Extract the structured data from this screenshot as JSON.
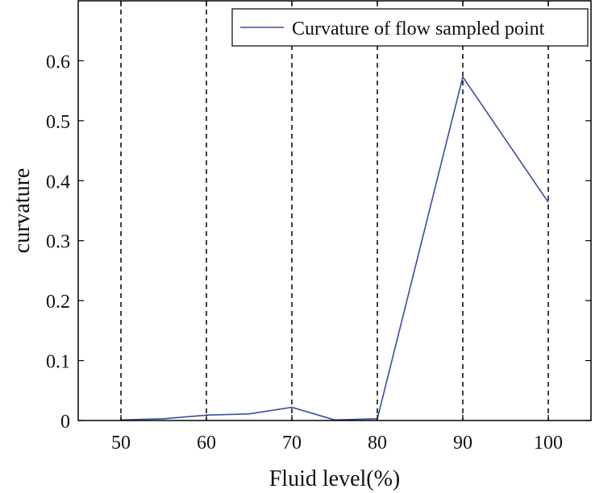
{
  "chart_data": {
    "type": "line",
    "xlabel": "Fluid level(%)",
    "ylabel": "curvature",
    "xlim": [
      45,
      105
    ],
    "ylim": [
      0,
      0.7
    ],
    "x_ticks": [
      50,
      60,
      70,
      80,
      90,
      100
    ],
    "x_tick_labels": [
      "50",
      "60",
      "70",
      "80",
      "90",
      "100"
    ],
    "y_ticks": [
      0,
      0.1,
      0.2,
      0.3,
      0.4,
      0.5,
      0.6
    ],
    "y_tick_labels": [
      "0",
      "0.1",
      "0.2",
      "0.3",
      "0.4",
      "0.5",
      "0.6"
    ],
    "vertical_dashed_lines_at": [
      50,
      60,
      70,
      80,
      90,
      100
    ],
    "grid": false,
    "legend_position": "top-right",
    "series_color": "#3a4ea0",
    "series": [
      {
        "name": "Curvature of flow sampled point",
        "x": [
          50,
          55,
          60,
          65,
          70,
          75,
          80,
          90,
          100
        ],
        "values": [
          0.001,
          0.003,
          0.009,
          0.011,
          0.022,
          0.001,
          0.003,
          0.573,
          0.364
        ]
      }
    ]
  }
}
